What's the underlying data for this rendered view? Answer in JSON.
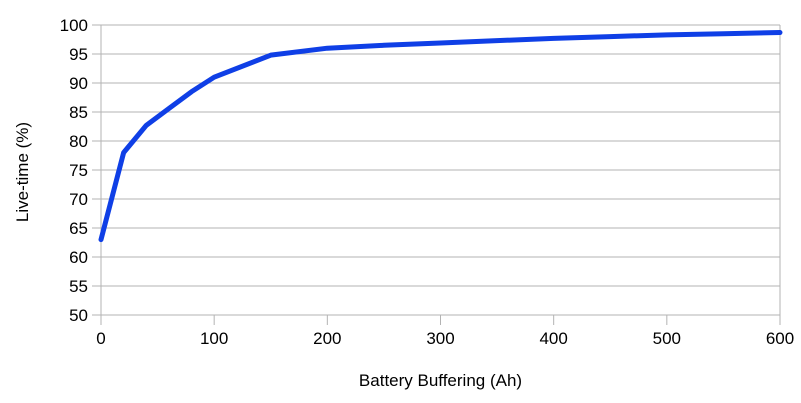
{
  "chart_data": {
    "type": "line",
    "title": "",
    "xlabel": "Battery Buffering (Ah)",
    "ylabel": "Live-time (%)",
    "x": [
      0,
      20,
      40,
      60,
      80,
      100,
      150,
      200,
      250,
      300,
      350,
      400,
      450,
      500,
      550,
      600
    ],
    "y": [
      63,
      78,
      82.7,
      85.6,
      88.5,
      91,
      94.8,
      96,
      96.5,
      96.9,
      97.3,
      97.7,
      98,
      98.3,
      98.5,
      98.7
    ],
    "xlim": [
      0,
      600
    ],
    "ylim": [
      50,
      100
    ],
    "x_ticks": [
      0,
      100,
      200,
      300,
      400,
      500,
      600
    ],
    "y_ticks": [
      50,
      55,
      60,
      65,
      70,
      75,
      80,
      85,
      90,
      95,
      100
    ],
    "grid": "horizontal-only",
    "legend": "none",
    "line_color": "#0f3fe6",
    "grid_color": "#b3b3b3",
    "axis_color": "#b3b3b3",
    "text_color": "#000000",
    "background": "#ffffff"
  }
}
